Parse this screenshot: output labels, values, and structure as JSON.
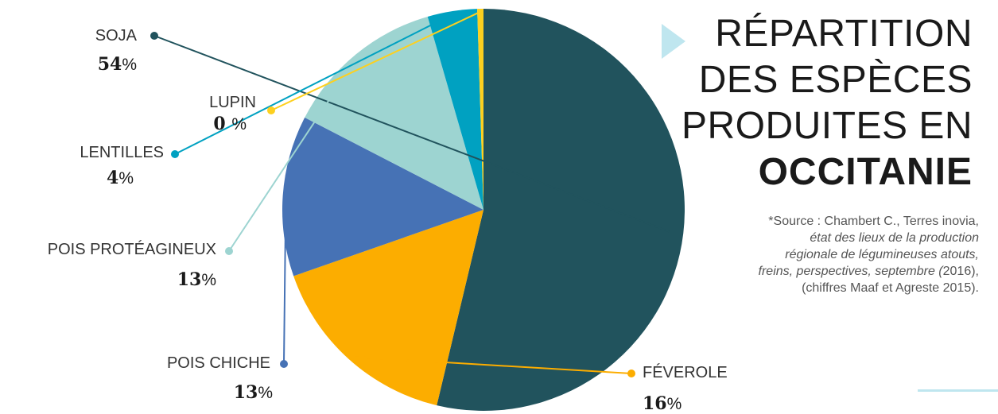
{
  "title": {
    "lines": [
      "RÉPARTITION",
      "DES ESPÈCES",
      "PRODUITES EN"
    ],
    "emphasis": "OCCITANIE"
  },
  "source": {
    "prefix": "*Source : Chambert C., Terres inovia,",
    "italic_1": "état des lieux de la production",
    "italic_2": "régionale de légumineuses atouts,",
    "italic_3": "freins, perspectives, septembre (",
    "year": "2016",
    "after_year": "),",
    "last_line": "(chiffres Maaf et Agreste 2015)."
  },
  "chart_data": {
    "type": "pie",
    "title": "",
    "start": "top, clockwise, largest slice first",
    "slices": [
      {
        "label": "SOJA",
        "value": 54,
        "value_text": "54",
        "percent_sign": "%",
        "color": "#21535d"
      },
      {
        "label": "FÉVEROLE",
        "value": 16,
        "value_text": "16",
        "percent_sign": "%",
        "color": "#fcad00"
      },
      {
        "label": "POIS CHICHE",
        "value": 13,
        "value_text": "13",
        "percent_sign": "%",
        "color": "#4672b5"
      },
      {
        "label": "POIS PROTÉAGINEUX",
        "value": 13,
        "value_text": "13",
        "percent_sign": "%",
        "color": "#9dd4d1"
      },
      {
        "label": "LENTILLES",
        "value": 4,
        "value_text": "4",
        "percent_sign": "%",
        "color": "#00a1c1"
      },
      {
        "label": "LUPIN",
        "value": 0.5,
        "value_text": "0 ",
        "percent_sign": "%",
        "color": "#fdd01f"
      }
    ]
  },
  "colors": {
    "accent": "#bfe6ef",
    "text": "#1a1a1a"
  }
}
